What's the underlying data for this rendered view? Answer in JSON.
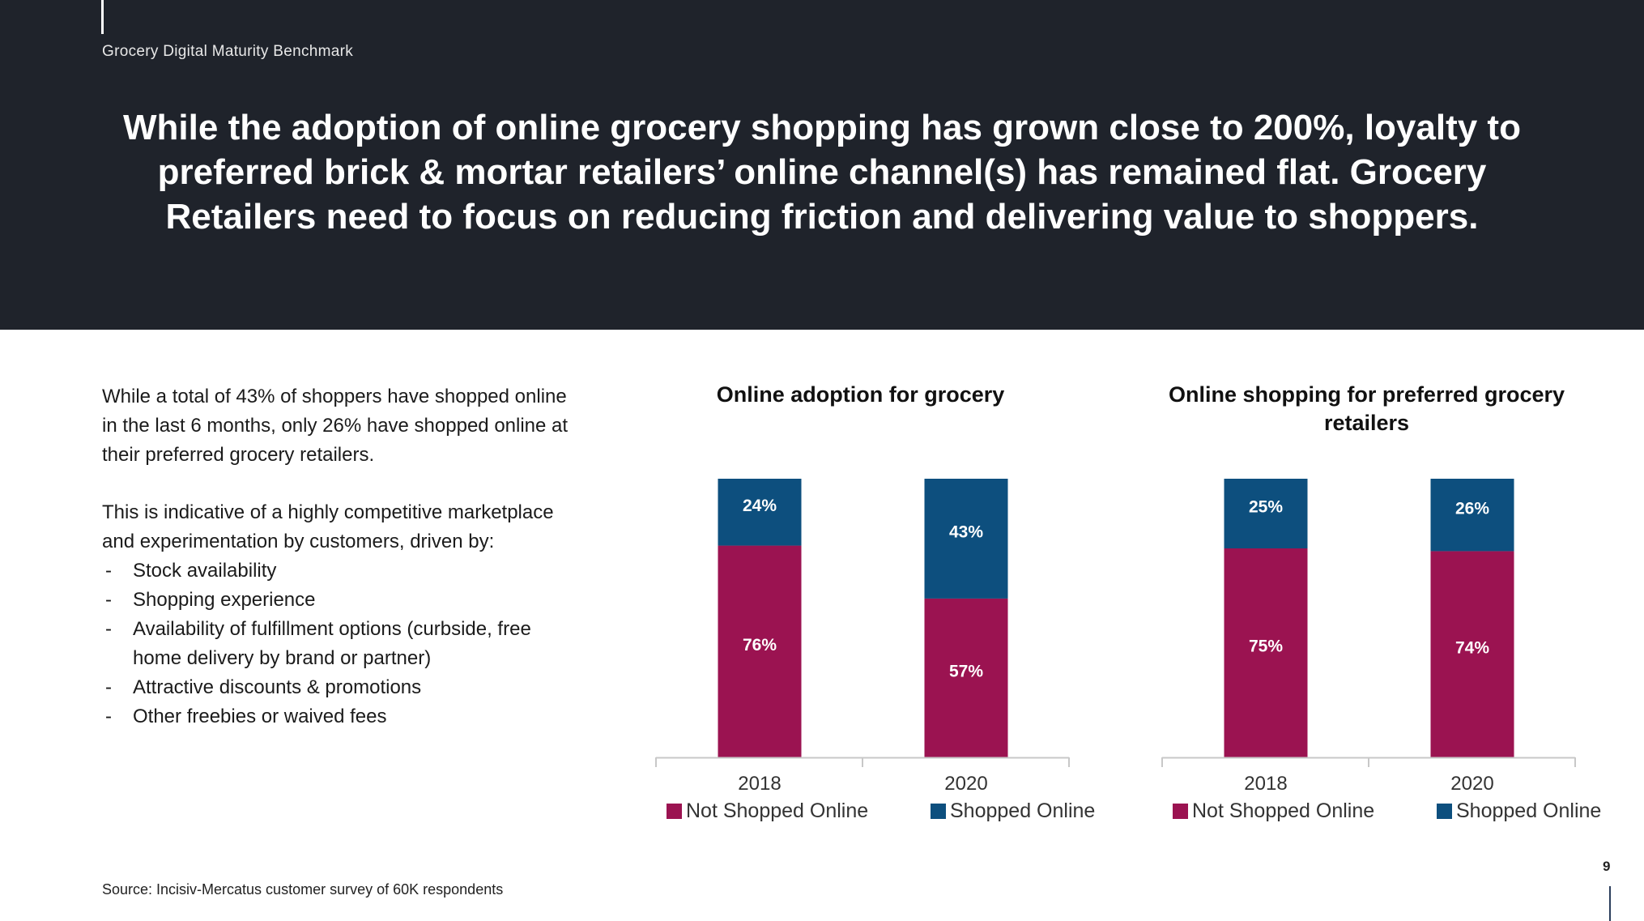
{
  "header": {
    "brand": "Grocery Digital Maturity Benchmark",
    "title": "While the adoption of online grocery shopping has grown close to 200%, loyalty to preferred brick & mortar retailers’ online channel(s) has remained flat. Grocery Retailers need to focus on reducing friction and delivering value to shoppers."
  },
  "body": {
    "paragraph1": "While a total of 43% of shoppers have shopped online in the last 6 months, only 26% have shopped online at their preferred grocery retailers.",
    "paragraph2": "This is indicative of a highly competitive marketplace and experimentation by customers, driven by:",
    "bullet_marker": "-",
    "bullets": [
      "Stock availability",
      "Shopping experience",
      "Availability of fulfillment options (curbside, free home delivery by brand or partner)",
      "Attractive discounts & promotions",
      "Other freebies or waived fees"
    ]
  },
  "colors": {
    "not_shopped": "#9b1351",
    "shopped": "#0d4f7e",
    "header_bg": "#1f232b",
    "axis": "#c8c8c8"
  },
  "chart_data": [
    {
      "type": "bar",
      "stacked": true,
      "title": "Online adoption for grocery",
      "categories": [
        "2018",
        "2020"
      ],
      "series": [
        {
          "name": "Not Shopped Online",
          "values": [
            76,
            57
          ],
          "labels": [
            "76%",
            "57%"
          ]
        },
        {
          "name": "Shopped Online",
          "values": [
            24,
            43
          ],
          "labels": [
            "24%",
            "43%"
          ]
        }
      ],
      "ylim": [
        0,
        100
      ],
      "legend": "bottom"
    },
    {
      "type": "bar",
      "stacked": true,
      "title": "Online shopping for preferred grocery retailers",
      "categories": [
        "2018",
        "2020"
      ],
      "series": [
        {
          "name": "Not Shopped Online",
          "values": [
            75,
            74
          ],
          "labels": [
            "75%",
            "74%"
          ]
        },
        {
          "name": "Shopped Online",
          "values": [
            25,
            26
          ],
          "labels": [
            "25%",
            "26%"
          ]
        }
      ],
      "ylim": [
        0,
        100
      ],
      "legend": "bottom"
    }
  ],
  "footer": {
    "source": "Source: Incisiv-Mercatus customer survey of 60K respondents",
    "page_number": "9"
  }
}
